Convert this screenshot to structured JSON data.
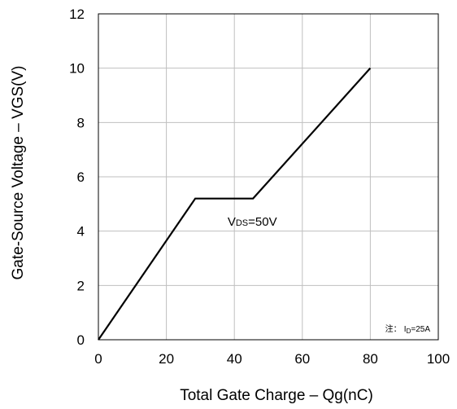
{
  "chart_data": {
    "type": "line",
    "title": "",
    "xlabel": "Total Gate Charge – Qg(nC)",
    "ylabel": "Gate-Source Voltage – VGS(V)",
    "xlim": [
      0,
      100
    ],
    "ylim": [
      0,
      12
    ],
    "x_ticks": [
      0,
      20,
      40,
      60,
      80,
      100
    ],
    "y_ticks": [
      0,
      2,
      4,
      6,
      8,
      10,
      12
    ],
    "grid": true,
    "series": [
      {
        "color": "#000000",
        "points": [
          [
            0,
            0
          ],
          [
            28.5,
            5.2
          ],
          [
            45.5,
            5.2
          ],
          [
            80,
            10
          ]
        ]
      }
    ],
    "annotations": [
      {
        "text": "VDS=50V",
        "main": "V",
        "sub": "DS",
        "rest": "=50V",
        "x": 38,
        "y": 4.2
      }
    ],
    "note": {
      "prefix": "注：",
      "main": "I",
      "sub": "D",
      "rest": "=25A"
    }
  }
}
